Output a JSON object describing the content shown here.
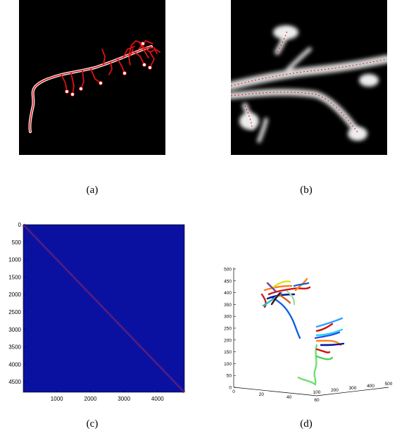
{
  "figure": {
    "panels": [
      {
        "id": "a",
        "caption": "(a)",
        "content": "neuron-reconstruction-overlay"
      },
      {
        "id": "b",
        "caption": "(b)",
        "content": "zoomed-dendrite-detail"
      },
      {
        "id": "c",
        "caption": "(c)",
        "content": "matrix-heatmap"
      },
      {
        "id": "d",
        "caption": "(d)",
        "content": "3d-colored-trace-plot"
      }
    ]
  },
  "colors": {
    "background_dark": "#000000",
    "trace_red": "#e01010",
    "heatmap_bg": "#0a10a0",
    "heatmap_diag": "#b83030"
  },
  "chart_data": [
    {
      "type": "heatmap",
      "panel": "c",
      "yticks": [
        "0",
        "500",
        "1000",
        "1500",
        "2000",
        "2500",
        "3000",
        "3500",
        "4000",
        "4500"
      ],
      "xticks": [
        "1000",
        "2000",
        "3000",
        "4000"
      ],
      "xlim": [
        0,
        4800
      ],
      "ylim": [
        0,
        4800
      ]
    },
    {
      "type": "line",
      "panel": "d",
      "zticks": [
        "0",
        "50",
        "100",
        "150",
        "200",
        "250",
        "300",
        "350",
        "400",
        "450",
        "500"
      ],
      "xticks": [
        "0",
        "20",
        "40",
        "60"
      ],
      "yticks": [
        "100",
        "200",
        "300",
        "400",
        "500"
      ],
      "zlim": [
        0,
        500
      ]
    }
  ]
}
